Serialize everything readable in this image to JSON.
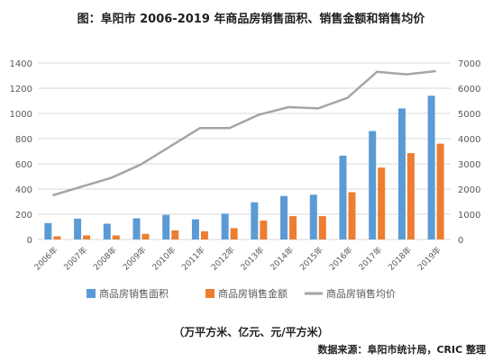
{
  "title": "图：阜阳市 2006-2019 年商品房销售面积、销售金额和销售均价",
  "unit_note": "（万平方米、亿元、元/平方米）",
  "source": "数据来源：阜阳市统计局，CRIC 整理",
  "colors": {
    "area": "#5b9bd5",
    "amount": "#ed7d31",
    "price": "#a5a5a5",
    "grid": "#d9d9d9",
    "text": "#595959"
  },
  "chart_data": {
    "type": "bar",
    "categories": [
      "2006年",
      "2007年",
      "2008年",
      "2009年",
      "2010年",
      "2011年",
      "2012年",
      "2013年",
      "2014年",
      "2015年",
      "2016年",
      "2017年",
      "2018年",
      "2019年"
    ],
    "series": [
      {
        "name": "商品房销售面积",
        "type": "bar",
        "axis": "left",
        "values": [
          130,
          165,
          125,
          168,
          195,
          160,
          205,
          295,
          345,
          355,
          665,
          860,
          1040,
          1140
        ]
      },
      {
        "name": "商品房销售金额",
        "type": "bar",
        "axis": "left",
        "values": [
          25,
          32,
          32,
          45,
          72,
          65,
          90,
          150,
          185,
          185,
          375,
          570,
          685,
          760
        ]
      },
      {
        "name": "商品房销售均价",
        "type": "line",
        "axis": "right",
        "values": [
          1750,
          2100,
          2450,
          2980,
          3700,
          4420,
          4420,
          4950,
          5250,
          5200,
          5620,
          6650,
          6550,
          6680
        ]
      }
    ],
    "left_axis": {
      "ylim": [
        0,
        1400
      ],
      "ticks": [
        "0",
        "200",
        "400",
        "600",
        "800",
        "1000",
        "1200",
        "1400"
      ]
    },
    "right_axis": {
      "ylim": [
        0,
        7000
      ],
      "ticks": [
        "0",
        "1000",
        "2000",
        "3000",
        "4000",
        "5000",
        "6000",
        "7000"
      ]
    },
    "grid": true,
    "legend_position": "bottom"
  }
}
